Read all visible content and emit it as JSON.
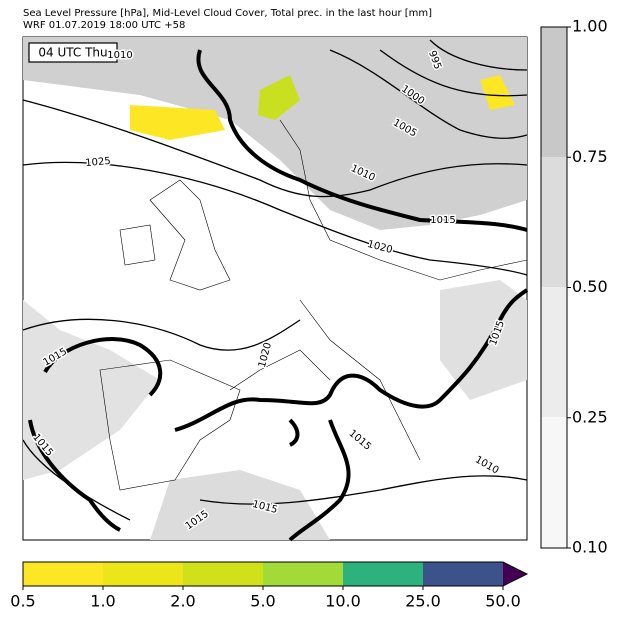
{
  "header": {
    "line1": "Sea Level Pressure [hPa], Mid-Level Cloud Cover, Total prec. in the last hour [mm]",
    "line2": "WRF 01.07.2019 18:00 UTC +58"
  },
  "time_label": "04 UTC Thu",
  "contour_labels": [
    "1010",
    "995",
    "1000",
    "1005",
    "1025",
    "1010",
    "1015",
    "1020",
    "1015",
    "1020",
    "1015",
    "1015",
    "1015",
    "1010",
    "1015",
    "1015"
  ],
  "cloud_colorbar": {
    "ticks": [
      "1.00",
      "0.75",
      "0.50",
      "0.25",
      "0.10"
    ]
  },
  "precip_colorbar": {
    "ticks": [
      "0.5",
      "1.0",
      "2.0",
      "5.0",
      "10.0",
      "25.0",
      "50.0"
    ]
  }
}
